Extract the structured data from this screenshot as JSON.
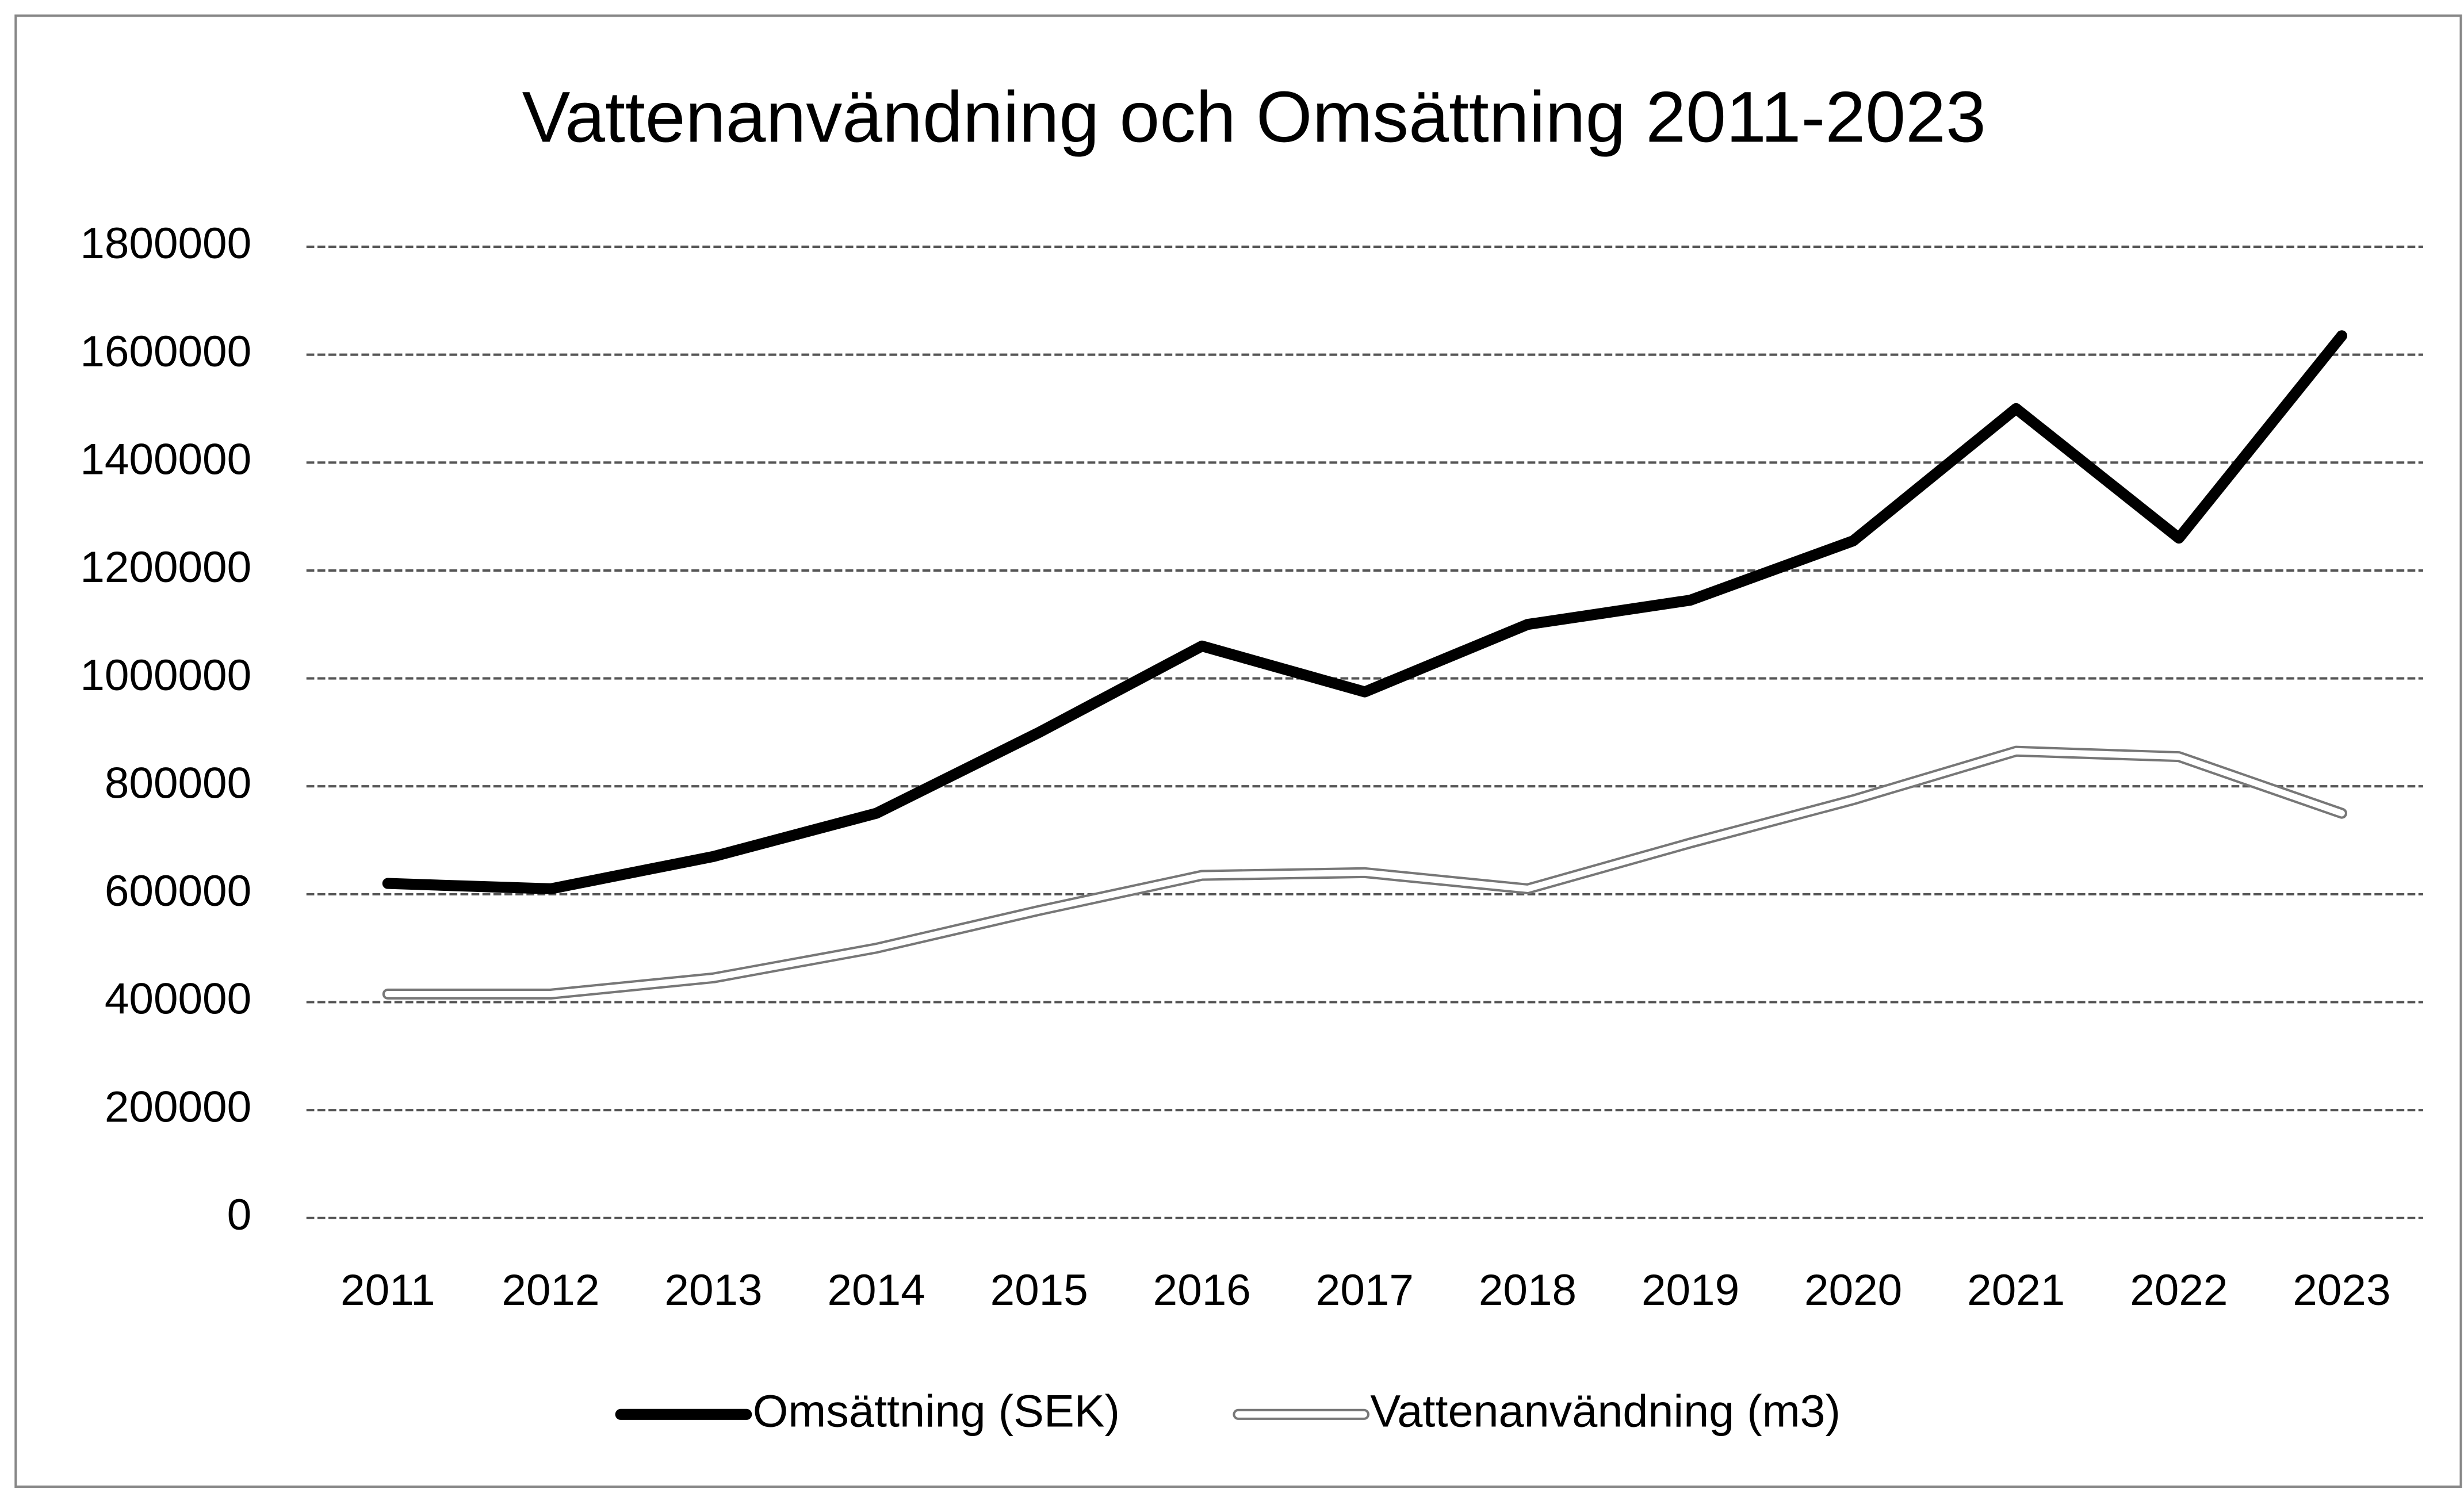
{
  "chart_data": {
    "type": "line",
    "title": "Vattenanvändning och Omsättning 2011-2023",
    "categories": [
      "2011",
      "2012",
      "2013",
      "2014",
      "2015",
      "2016",
      "2017",
      "2018",
      "2019",
      "2020",
      "2021",
      "2022",
      "2023"
    ],
    "series": [
      {
        "name": "Omsättning (SEK)",
        "color": "#000000",
        "values": [
          620000,
          610000,
          670000,
          750000,
          900000,
          1060000,
          975000,
          1100000,
          1145000,
          1255000,
          1500000,
          1260000,
          1635000
        ]
      },
      {
        "name": "Vattenanvändning (m3)",
        "color": "#ffffff",
        "values": [
          415000,
          415000,
          445000,
          500000,
          570000,
          635000,
          640000,
          610000,
          695000,
          775000,
          865000,
          855000,
          750000
        ]
      }
    ],
    "ylim": [
      0,
      1800000
    ],
    "yticks": [
      0,
      200000,
      400000,
      600000,
      800000,
      1000000,
      1200000,
      1400000,
      1600000,
      1800000
    ],
    "grid": true,
    "legend": "bottom"
  }
}
